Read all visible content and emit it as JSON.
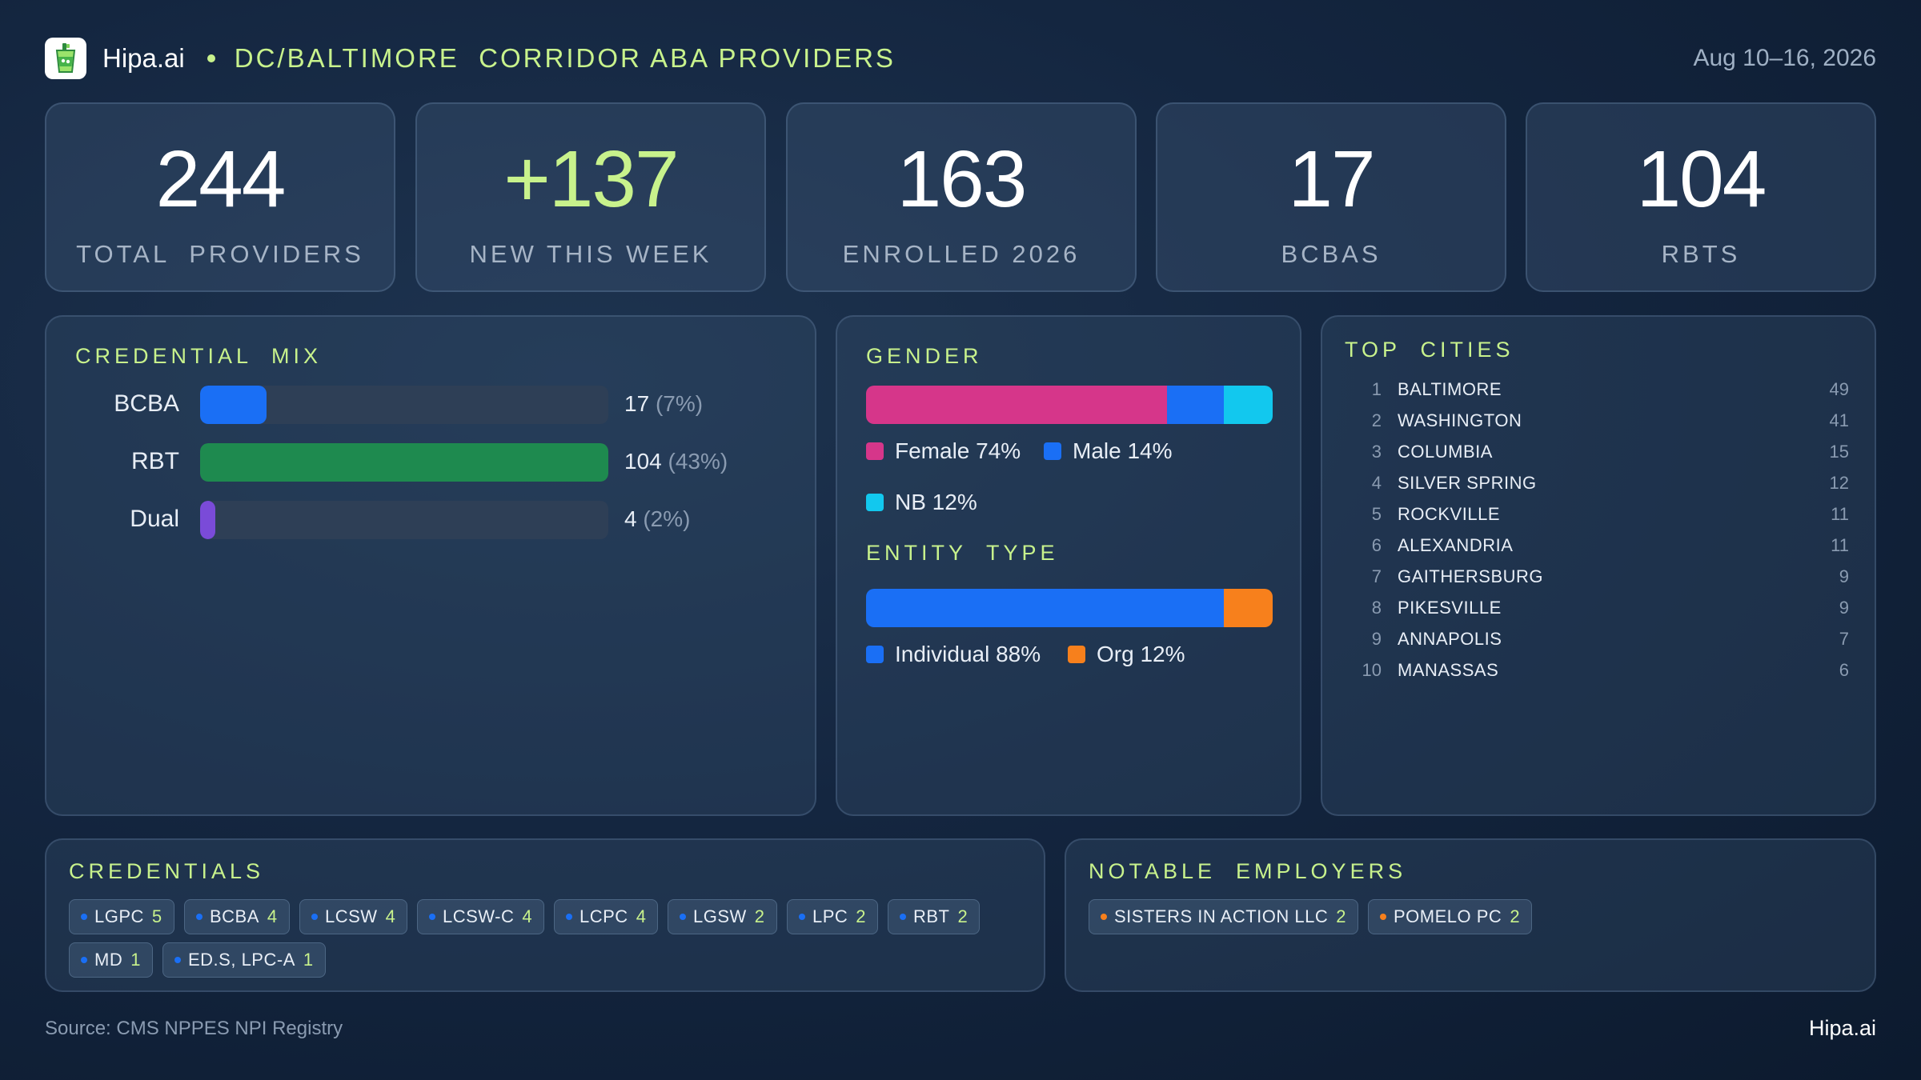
{
  "header": {
    "brand": "Hipa.ai",
    "title": "DC/BALTIMORE  CORRIDOR ABA PROVIDERS",
    "date": "Aug 10–16, 2026"
  },
  "stats": [
    {
      "value": "244",
      "label": "TOTAL  PROVIDERS"
    },
    {
      "value": "+137",
      "label": "NEW THIS WEEK"
    },
    {
      "value": "163",
      "label": "ENROLLED 2026"
    },
    {
      "value": "17",
      "label": "BCBAS"
    },
    {
      "value": "104",
      "label": "RBTS"
    }
  ],
  "credential_mix": {
    "title": "CREDENTIAL  MIX",
    "rows": [
      {
        "label": "BCBA",
        "count": "17",
        "pct": "(7%)",
        "fraction": 0.163,
        "color": "#1a6ff5"
      },
      {
        "label": "RBT",
        "count": "104",
        "pct": "(43%)",
        "fraction": 1.0,
        "color": "#1e8a4f"
      },
      {
        "label": "Dual",
        "count": "4",
        "pct": "(2%)",
        "fraction": 0.038,
        "color": "#7a4bd8"
      }
    ]
  },
  "gender": {
    "title": "GENDER",
    "segments": [
      {
        "label": "Female 74%",
        "share": 74,
        "color": "#d6368a"
      },
      {
        "label": "Male 14%",
        "share": 14,
        "color": "#1a6ff5"
      },
      {
        "label": "NB 12%",
        "share": 12,
        "color": "#12c8ee"
      }
    ]
  },
  "entity_type": {
    "title": "ENTITY  TYPE",
    "segments": [
      {
        "label": "Individual 88%",
        "share": 88,
        "color": "#1a6ff5"
      },
      {
        "label": "Org 12%",
        "share": 12,
        "color": "#f7801c"
      }
    ]
  },
  "top_cities": {
    "title": "TOP  CITIES",
    "items": [
      {
        "rank": "1",
        "name": "BALTIMORE",
        "count": "49"
      },
      {
        "rank": "2",
        "name": "WASHINGTON",
        "count": "41"
      },
      {
        "rank": "3",
        "name": "COLUMBIA",
        "count": "15"
      },
      {
        "rank": "4",
        "name": "SILVER SPRING",
        "count": "12"
      },
      {
        "rank": "5",
        "name": "ROCKVILLE",
        "count": "11"
      },
      {
        "rank": "6",
        "name": "ALEXANDRIA",
        "count": "11"
      },
      {
        "rank": "7",
        "name": "GAITHERSBURG",
        "count": "9"
      },
      {
        "rank": "8",
        "name": "PIKESVILLE",
        "count": "9"
      },
      {
        "rank": "9",
        "name": "ANNAPOLIS",
        "count": "7"
      },
      {
        "rank": "10",
        "name": "MANASSAS",
        "count": "6"
      }
    ]
  },
  "credentials": {
    "title": "CREDENTIALS",
    "dot_color": "#1a6ff5",
    "chips": [
      {
        "label": "LGPC",
        "count": "5"
      },
      {
        "label": "BCBA",
        "count": "4"
      },
      {
        "label": "LCSW",
        "count": "4"
      },
      {
        "label": "LCSW-C",
        "count": "4"
      },
      {
        "label": "LCPC",
        "count": "4"
      },
      {
        "label": "LGSW",
        "count": "2"
      },
      {
        "label": "LPC",
        "count": "2"
      },
      {
        "label": "RBT",
        "count": "2"
      },
      {
        "label": "MD",
        "count": "1"
      },
      {
        "label": "ED.S, LPC-A",
        "count": "1"
      }
    ]
  },
  "employers": {
    "title": "NOTABLE  EMPLOYERS",
    "dot_color": "#f7801c",
    "chips": [
      {
        "label": "SISTERS IN ACTION LLC",
        "count": "2"
      },
      {
        "label": "POMELO PC",
        "count": "2"
      }
    ]
  },
  "footer": {
    "source": "Source: CMS NPPES NPI Registry",
    "brand": "Hipa.ai"
  }
}
